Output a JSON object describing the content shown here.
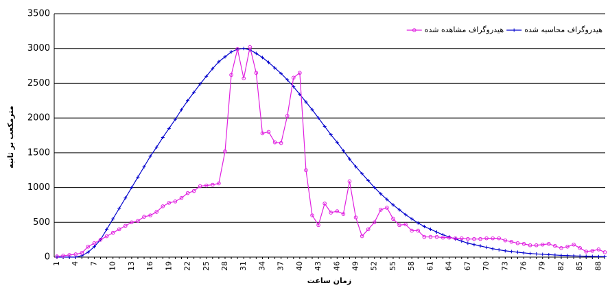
{
  "chart_data": {
    "type": "line",
    "y_label": "مترمکعب بر ثانیه",
    "x_label": "زمان ساعت",
    "categories": [
      "1",
      null,
      null,
      "4",
      null,
      null,
      "7",
      null,
      null,
      "10",
      null,
      null,
      "13",
      null,
      null,
      "16",
      null,
      null,
      "19",
      null,
      null,
      "22",
      null,
      null,
      "25",
      null,
      null,
      "28",
      null,
      null,
      "31",
      null,
      null,
      "34",
      null,
      null,
      "37",
      null,
      null,
      "40",
      null,
      null,
      "43",
      null,
      null,
      "46",
      null,
      null,
      "49",
      null,
      null,
      "52",
      null,
      null,
      "55",
      null,
      null,
      "58",
      null,
      null,
      "61",
      null,
      null,
      "64",
      null,
      null,
      "67",
      null,
      null,
      "70",
      null,
      null,
      "73",
      null,
      null,
      "76",
      null,
      null,
      "79",
      null,
      null,
      "82",
      null,
      null,
      "85",
      null,
      null,
      "88",
      null
    ],
    "series": [
      {
        "name": "هیدروگراف محاسبه شده",
        "color": "#0000cc",
        "marker": "plus",
        "values": [
          0,
          0,
          0,
          0,
          20,
          70,
          150,
          250,
          400,
          550,
          700,
          850,
          1000,
          1150,
          1300,
          1450,
          1580,
          1720,
          1850,
          1980,
          2120,
          2250,
          2370,
          2490,
          2600,
          2710,
          2810,
          2880,
          2950,
          2990,
          3000,
          2980,
          2930,
          2870,
          2800,
          2720,
          2640,
          2550,
          2450,
          2340,
          2230,
          2120,
          2000,
          1880,
          1760,
          1650,
          1530,
          1410,
          1300,
          1200,
          1100,
          1000,
          910,
          830,
          750,
          680,
          610,
          550,
          490,
          440,
          400,
          360,
          320,
          290,
          260,
          230,
          200,
          180,
          160,
          140,
          120,
          105,
          90,
          80,
          70,
          60,
          52,
          45,
          40,
          35,
          30,
          25,
          22,
          18,
          15,
          12,
          10,
          8,
          6
        ]
      },
      {
        "name": "هیدروگراف مشاهده شده",
        "color": "#e020e0",
        "marker": "circle",
        "values": [
          10,
          20,
          30,
          40,
          60,
          150,
          200,
          250,
          300,
          350,
          400,
          450,
          500,
          520,
          580,
          600,
          650,
          730,
          780,
          800,
          850,
          920,
          950,
          1020,
          1030,
          1040,
          1060,
          1520,
          2620,
          2990,
          2570,
          3020,
          2650,
          1780,
          1800,
          1650,
          1640,
          2030,
          2580,
          2650,
          1250,
          600,
          460,
          770,
          640,
          660,
          620,
          1090,
          570,
          300,
          400,
          500,
          680,
          710,
          550,
          460,
          470,
          380,
          380,
          290,
          290,
          290,
          280,
          280,
          270,
          270,
          260,
          260,
          260,
          270,
          270,
          270,
          240,
          220,
          200,
          190,
          170,
          170,
          180,
          190,
          160,
          130,
          150,
          180,
          130,
          80,
          90,
          110,
          70
        ]
      }
    ],
    "ylim": [
      0,
      3500
    ],
    "yticks": [
      0,
      500,
      1000,
      1500,
      2000,
      2500,
      3000,
      3500
    ],
    "grid": true,
    "legend": "top-right"
  }
}
